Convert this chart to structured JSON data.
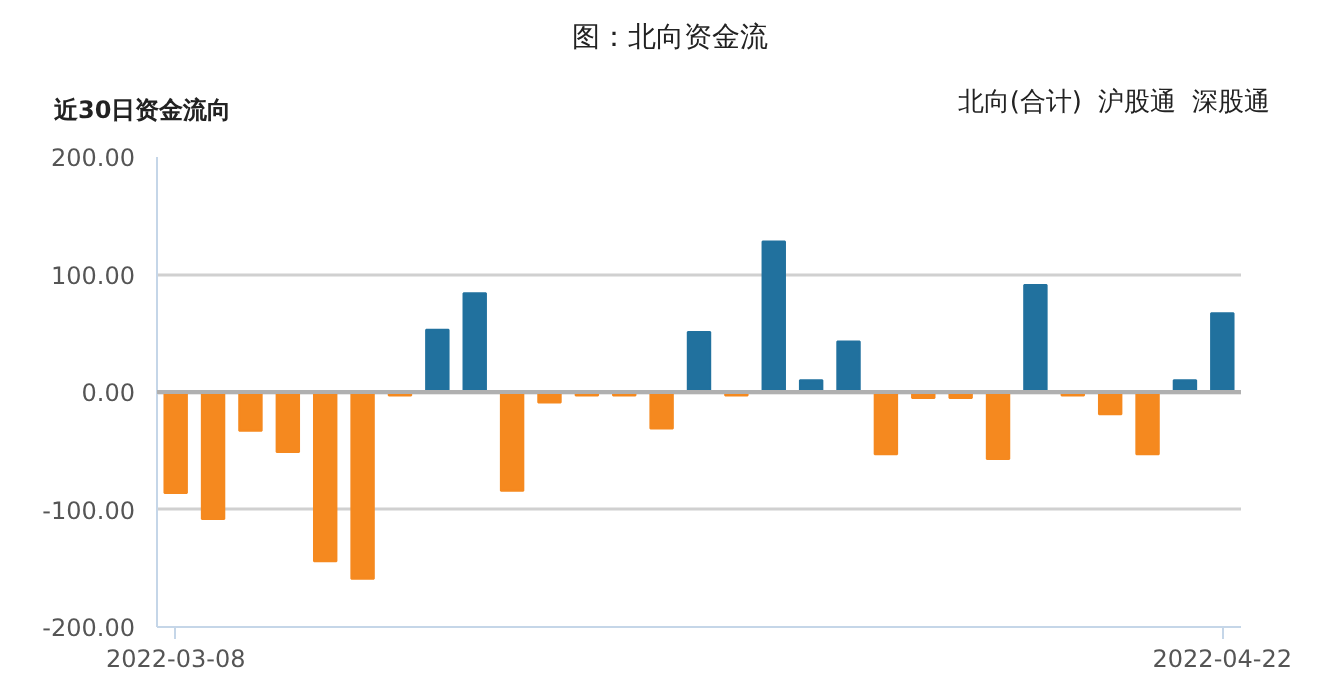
{
  "chart_data": {
    "type": "bar",
    "title": "图：北向资金流",
    "subtitle": "近30日资金流向",
    "annotations": [
      "北向(合计)",
      "沪股通",
      "深股通"
    ],
    "categories": [
      "2022-03-08",
      null,
      null,
      null,
      null,
      null,
      null,
      null,
      null,
      null,
      null,
      null,
      null,
      null,
      null,
      null,
      null,
      null,
      null,
      null,
      null,
      null,
      null,
      null,
      null,
      null,
      null,
      null,
      "2022-04-22"
    ],
    "values": [
      -86,
      -108,
      -33,
      -51,
      -144,
      -159,
      -3,
      53,
      84,
      -84,
      -9,
      -3,
      -3,
      -31,
      51,
      -3,
      128,
      10,
      43,
      -53,
      -5,
      -5,
      -57,
      91,
      -3,
      -19,
      -53,
      10,
      67
    ],
    "colors": [
      "#f5891f",
      "#f5891f",
      "#f5891f",
      "#f5891f",
      "#f5891f",
      "#f5891f",
      "#f5891f",
      "#21719e",
      "#21719e",
      "#f5891f",
      "#f5891f",
      "#f5891f",
      "#f5891f",
      "#f5891f",
      "#21719e",
      "#f5891f",
      "#21719e",
      "#21719e",
      "#21719e",
      "#f5891f",
      "#f5891f",
      "#f5891f",
      "#f5891f",
      "#21719e",
      "#f5891f",
      "#f5891f",
      "#f5891f",
      "#21719e",
      "#21719e"
    ],
    "ylim": [
      -200,
      200
    ],
    "yticks": [
      {
        "value": -200,
        "label": "-200.00"
      },
      {
        "value": -100,
        "label": "-100.00"
      },
      {
        "value": 0,
        "label": "0.00"
      },
      {
        "value": 100,
        "label": "100.00"
      },
      {
        "value": 200,
        "label": "200.00"
      }
    ],
    "grid": "y"
  }
}
